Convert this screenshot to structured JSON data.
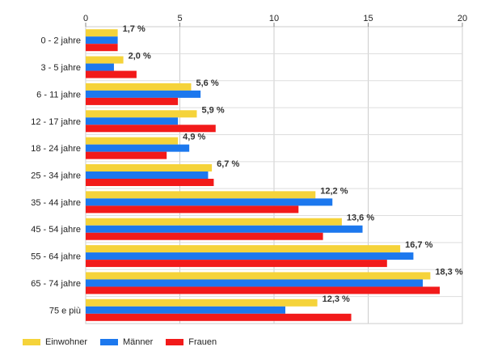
{
  "chart_data": {
    "type": "bar",
    "orientation": "horizontal",
    "title": "",
    "xlabel": "",
    "ylabel": "",
    "xlim": [
      0,
      20
    ],
    "x_ticks": [
      0,
      5,
      10,
      15,
      20
    ],
    "grid": true,
    "legend_position": "bottom-left",
    "categories": [
      "0 - 2 jahre",
      "3 - 5 jahre",
      "6 - 11 jahre",
      "12 - 17 jahre",
      "18 - 24 jahre",
      "25 - 34 jahre",
      "35 - 44 jahre",
      "45 - 54 jahre",
      "55 - 64 jahre",
      "65 - 74 jahre",
      "75 e più"
    ],
    "series": [
      {
        "name": "Einwohner",
        "color": "#f5d33a",
        "values": [
          1.7,
          2.0,
          5.6,
          5.9,
          4.9,
          6.7,
          12.2,
          13.6,
          16.7,
          18.3,
          12.3
        ]
      },
      {
        "name": "Männer",
        "color": "#1c78ee",
        "values": [
          1.7,
          1.5,
          6.1,
          4.9,
          5.5,
          6.5,
          13.1,
          14.7,
          17.4,
          17.9,
          10.6
        ]
      },
      {
        "name": "Frauen",
        "color": "#f21a1a",
        "values": [
          1.7,
          2.7,
          4.9,
          6.9,
          4.3,
          6.8,
          11.3,
          12.6,
          16.0,
          18.8,
          14.1
        ]
      }
    ],
    "data_labels": [
      "1,7 %",
      "2,0 %",
      "5,6 %",
      "5,9 %",
      "4,9 %",
      "6,7 %",
      "12,2 %",
      "13,6 %",
      "16,7 %",
      "18,3 %",
      "12,3 %"
    ]
  }
}
